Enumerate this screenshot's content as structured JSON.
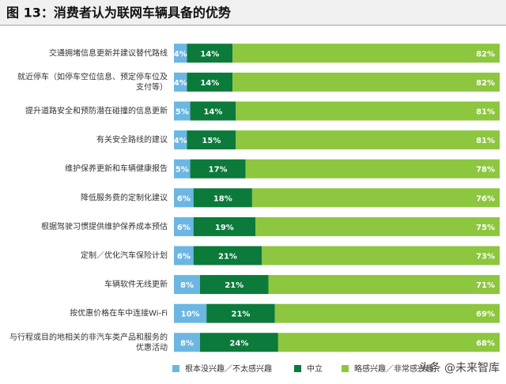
{
  "chart_data": {
    "type": "stacked-bar-horizontal",
    "title": "图 13：消费者认为联网车辆具备的优势",
    "categories": [
      "交通拥堵信息更新并建议替代路线",
      "就近停车（如停车空位信息、预定停车位及\n支付等）",
      "提升道路安全和预防潜在碰撞的信息更新",
      "有关安全路线的建议",
      "维护保养更新和车辆健康报告",
      "降低服务费的定制化建议",
      "根据驾驶习惯提供维护保养成本预估",
      "定制／优化汽车保险计划",
      "车辆软件无线更新",
      "按优惠价格在车中连接Wi-Fi",
      "与行程或目的地相关的非汽车类产品和服务的\n优惠活动"
    ],
    "xlim": [
      0,
      100
    ],
    "series": [
      {
        "name": "根本没兴趣／不太感兴趣",
        "color": "#6cb6e2",
        "values": [
          4,
          4,
          5,
          4,
          5,
          6,
          6,
          6,
          8,
          10,
          8
        ],
        "value_labels": [
          "4%",
          "4%",
          "5%",
          "4%",
          "5%",
          "6%",
          "6%",
          "6%",
          "8%",
          "10%",
          "8%"
        ]
      },
      {
        "name": "中立",
        "color": "#0b7a3b",
        "values": [
          14,
          14,
          14,
          15,
          17,
          18,
          19,
          21,
          21,
          21,
          24
        ],
        "value_labels": [
          "14%",
          "14%",
          "14%",
          "15%",
          "17%",
          "18%",
          "19%",
          "21%",
          "21%",
          "21%",
          "24%"
        ]
      },
      {
        "name": "略感兴趣／非常感兴趣",
        "color": "#8dc63f",
        "values": [
          82,
          82,
          81,
          81,
          78,
          76,
          75,
          73,
          71,
          69,
          68
        ],
        "value_labels": [
          "82%",
          "82%",
          "81%",
          "81%",
          "78%",
          "76%",
          "75%",
          "73%",
          "71%",
          "69%",
          "68%"
        ]
      }
    ],
    "watermark": "头条 @未来智库"
  }
}
